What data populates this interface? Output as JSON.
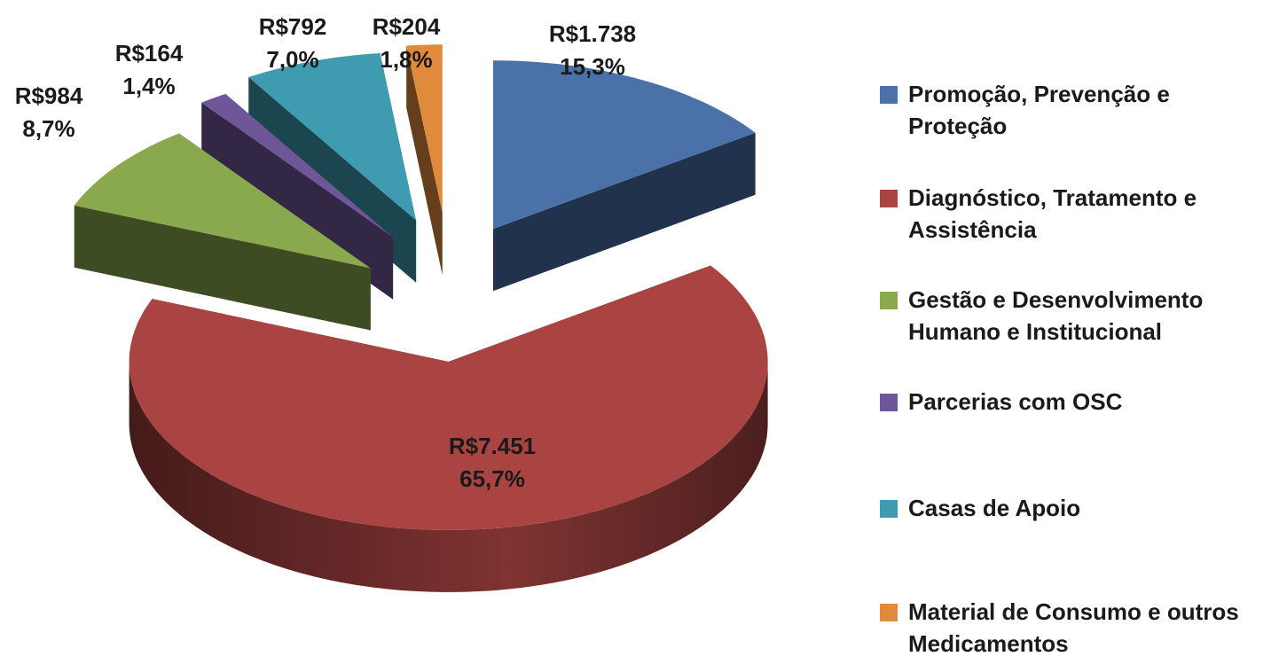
{
  "chart_data": {
    "type": "pie3d",
    "categories": [
      "Promoção, Prevenção e Proteção",
      "Diagnóstico, Tratamento e Assistência",
      "Gestão e Desenvolvimento Humano e Institucional",
      "Parcerias com OSC",
      "Casas de Apoio",
      "Material de Consumo e outros Medicamentos"
    ],
    "values": [
      1738,
      7451,
      984,
      164,
      792,
      204
    ],
    "value_labels": [
      "R$1.738",
      "R$7.451",
      "R$984",
      "R$164",
      "R$792",
      "R$204"
    ],
    "percents": [
      15.3,
      65.7,
      8.7,
      1.4,
      7.0,
      1.8
    ],
    "percent_labels": [
      "15,3%",
      "65,7%",
      "8,7%",
      "1,4%",
      "7,0%",
      "1,8%"
    ],
    "colors": [
      "#4a72a8",
      "#a94442",
      "#8aa84e",
      "#6f5699",
      "#3f9bb0",
      "#e08a3c"
    ],
    "legend": "right"
  }
}
